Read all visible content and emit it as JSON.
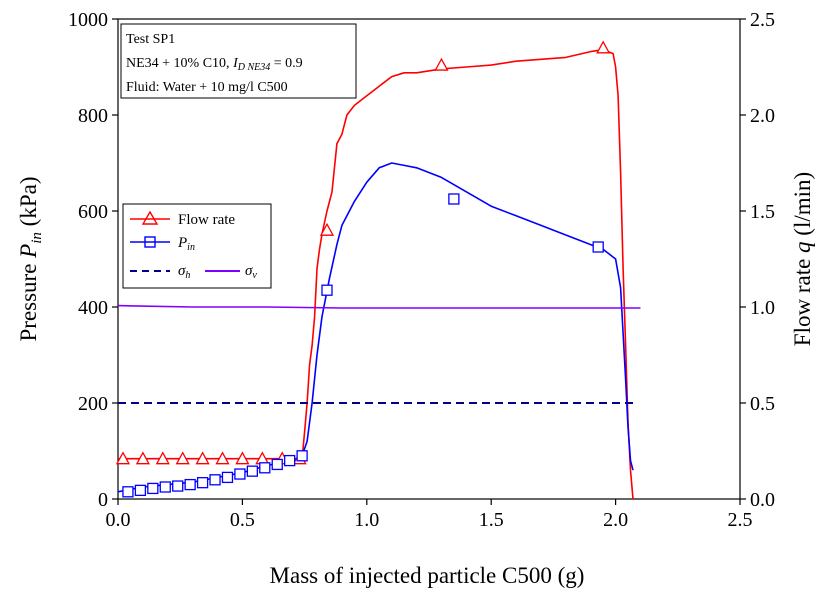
{
  "chart_data": {
    "type": "line",
    "info_box": {
      "line1": "Test SP1",
      "line2_prefix": "NE34 + 10% C10, ",
      "line2_var": "I",
      "line2_sub": "D NE34",
      "line2_suffix": " = 0.9",
      "line3": "Fluid: Water + 10 mg/l C500"
    },
    "x_axis": {
      "label": "Mass of injected particle C500 (g)",
      "range": [
        0,
        2.5
      ],
      "ticks": [
        "0.0",
        "0.5",
        "1.0",
        "1.5",
        "2.0",
        "2.5"
      ],
      "tick_values": [
        0,
        0.5,
        1.0,
        1.5,
        2.0,
        2.5
      ]
    },
    "y_left": {
      "label_prefix": "Pressure ",
      "label_var": "P",
      "label_sub": "in",
      "label_suffix": " (kPa)",
      "range": [
        0,
        1000
      ],
      "ticks": [
        "0",
        "200",
        "400",
        "600",
        "800",
        "1000"
      ],
      "tick_values": [
        0,
        200,
        400,
        600,
        800,
        1000
      ]
    },
    "y_right": {
      "label_prefix": "Flow rate ",
      "label_var": "q",
      "label_suffix": " (l/min)",
      "range": [
        0,
        2.5
      ],
      "ticks": [
        "0.0",
        "0.5",
        "1.0",
        "1.5",
        "2.0",
        "2.5"
      ],
      "tick_values": [
        0,
        0.5,
        1.0,
        1.5,
        2.0,
        2.5
      ]
    },
    "legend": [
      {
        "name": "Flow rate",
        "color": "#ff0000",
        "marker": "triangle"
      },
      {
        "name_var": "P",
        "name_sub": "in",
        "color": "#0000ff",
        "marker": "square"
      },
      {
        "name_var": "σ",
        "name_sub": "h",
        "color": "#00008b",
        "dash": true
      },
      {
        "name_var": "σ",
        "name_sub": "v",
        "color": "#8000ff"
      }
    ],
    "series": [
      {
        "name": "Flow rate",
        "axis": "right",
        "color": "#ff0000",
        "x": [
          0,
          0.74,
          0.75,
          0.76,
          0.77,
          0.78,
          0.79,
          0.8,
          0.81,
          0.82,
          0.84,
          0.86,
          0.88,
          0.9,
          0.92,
          0.95,
          1.0,
          1.05,
          1.1,
          1.15,
          1.2,
          1.3,
          1.4,
          1.5,
          1.6,
          1.8,
          1.9,
          1.95,
          1.99,
          2.0,
          2.01,
          2.02,
          2.03,
          2.04,
          2.05,
          2.06,
          2.07
        ],
        "y": [
          0.21,
          0.21,
          0.35,
          0.5,
          0.7,
          0.8,
          0.95,
          1.2,
          1.3,
          1.38,
          1.5,
          1.6,
          1.85,
          1.9,
          2.0,
          2.05,
          2.1,
          2.15,
          2.2,
          2.22,
          2.22,
          2.24,
          2.25,
          2.26,
          2.28,
          2.3,
          2.33,
          2.34,
          2.32,
          2.25,
          2.1,
          1.7,
          1.2,
          0.8,
          0.4,
          0.15,
          0.0
        ]
      },
      {
        "name": "P_in",
        "axis": "left",
        "color": "#0000ff",
        "x": [
          0,
          0.05,
          0.1,
          0.2,
          0.3,
          0.4,
          0.5,
          0.6,
          0.7,
          0.74,
          0.76,
          0.78,
          0.8,
          0.82,
          0.85,
          0.88,
          0.9,
          0.95,
          1.0,
          1.05,
          1.1,
          1.15,
          1.2,
          1.3,
          1.4,
          1.5,
          1.6,
          1.7,
          1.8,
          1.9,
          1.95,
          2.0,
          2.02,
          2.04,
          2.05,
          2.06,
          2.07
        ],
        "y": [
          15,
          20,
          25,
          30,
          35,
          45,
          55,
          70,
          80,
          90,
          120,
          200,
          300,
          380,
          460,
          530,
          570,
          620,
          660,
          690,
          700,
          695,
          690,
          670,
          640,
          610,
          590,
          570,
          550,
          530,
          520,
          500,
          440,
          250,
          150,
          80,
          60
        ]
      },
      {
        "name": "σ_h",
        "axis": "left",
        "color": "#00008b",
        "dash": true,
        "x": [
          0,
          2.07
        ],
        "y": [
          200,
          200
        ]
      },
      {
        "name": "σ_v",
        "axis": "left",
        "color": "#8000ff",
        "x": [
          0,
          0.3,
          0.6,
          0.9,
          1.2,
          1.5,
          1.8,
          2.1
        ],
        "y": [
          403,
          400,
          400,
          398,
          398,
          398,
          398,
          398
        ]
      }
    ],
    "markers": {
      "flow_x": [
        0.02,
        0.1,
        0.18,
        0.26,
        0.34,
        0.42,
        0.5,
        0.58,
        0.66,
        0.73,
        0.84,
        1.3,
        1.95
      ],
      "flow_y": [
        0.21,
        0.21,
        0.21,
        0.21,
        0.21,
        0.21,
        0.21,
        0.21,
        0.21,
        0.21,
        1.4,
        2.26,
        2.35
      ],
      "pin_x": [
        0.04,
        0.09,
        0.14,
        0.19,
        0.24,
        0.29,
        0.34,
        0.39,
        0.44,
        0.49,
        0.54,
        0.59,
        0.64,
        0.69,
        0.74,
        0.84,
        1.35,
        1.93
      ],
      "pin_y": [
        15,
        18,
        22,
        25,
        27,
        30,
        34,
        40,
        45,
        52,
        58,
        65,
        72,
        80,
        90,
        435,
        625,
        525
      ]
    },
    "grid": false
  }
}
